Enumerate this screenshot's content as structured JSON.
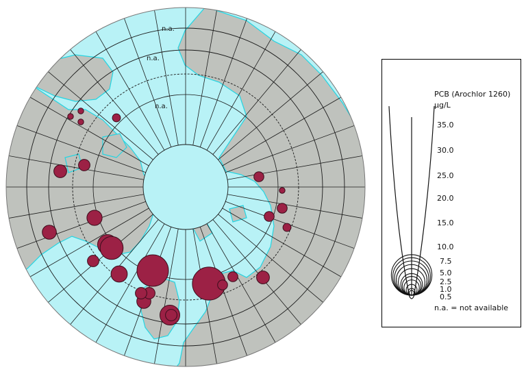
{
  "map": {
    "not_available_markers": [
      "n.a.",
      "n.a.",
      "n.a."
    ],
    "colors": {
      "ocean": "#b8f2f6",
      "land": "#bfc2bd",
      "coast": "#24d5e2",
      "dot": "#9c2145",
      "grid": "#1a1a1a"
    },
    "stations": [
      {
        "v": 1
      },
      {
        "v": 1
      },
      {
        "v": 1
      },
      {
        "v": 2
      },
      {
        "v": 5
      },
      {
        "v": 4
      },
      {
        "v": 7
      },
      {
        "v": 6
      },
      {
        "v": 12
      },
      {
        "v": 16
      },
      {
        "v": 4
      },
      {
        "v": 8
      },
      {
        "v": 30
      },
      {
        "v": 33
      },
      {
        "v": 3
      },
      {
        "v": 3
      },
      {
        "v": 5
      },
      {
        "v": 12
      },
      {
        "v": 6
      },
      {
        "v": 4
      },
      {
        "v": 4
      },
      {
        "v": 3
      },
      {
        "v": 1
      },
      {
        "v": 3
      },
      {
        "v": 3
      },
      {
        "v": 2
      },
      {
        "v": 4
      }
    ]
  },
  "legend": {
    "title": "PCB (Arochlor 1260)",
    "unit": "µg/L",
    "scale_values": [
      "35.0",
      "30.0",
      "25.0",
      "20.0",
      "15.0",
      "10.0",
      "7.5",
      "5.0",
      "2.5",
      "1.0",
      "0.5"
    ],
    "note": "n.a. = not available"
  }
}
